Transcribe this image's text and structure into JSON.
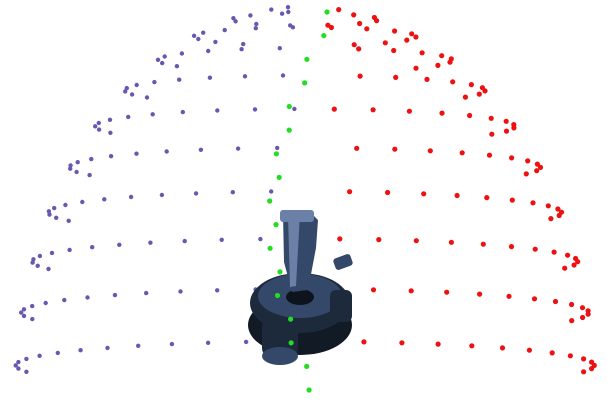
{
  "figure": {
    "colors": {
      "left_group": "#6a58b0",
      "boundary_group": "#22dd22",
      "right_group": "#ee1111",
      "object_dark": "#1d2a3c",
      "object_mid": "#34486a",
      "object_light": "#6b80a6"
    },
    "groups": [
      "left_group",
      "boundary_group",
      "right_group"
    ],
    "object": "pipe-clamp-part"
  }
}
